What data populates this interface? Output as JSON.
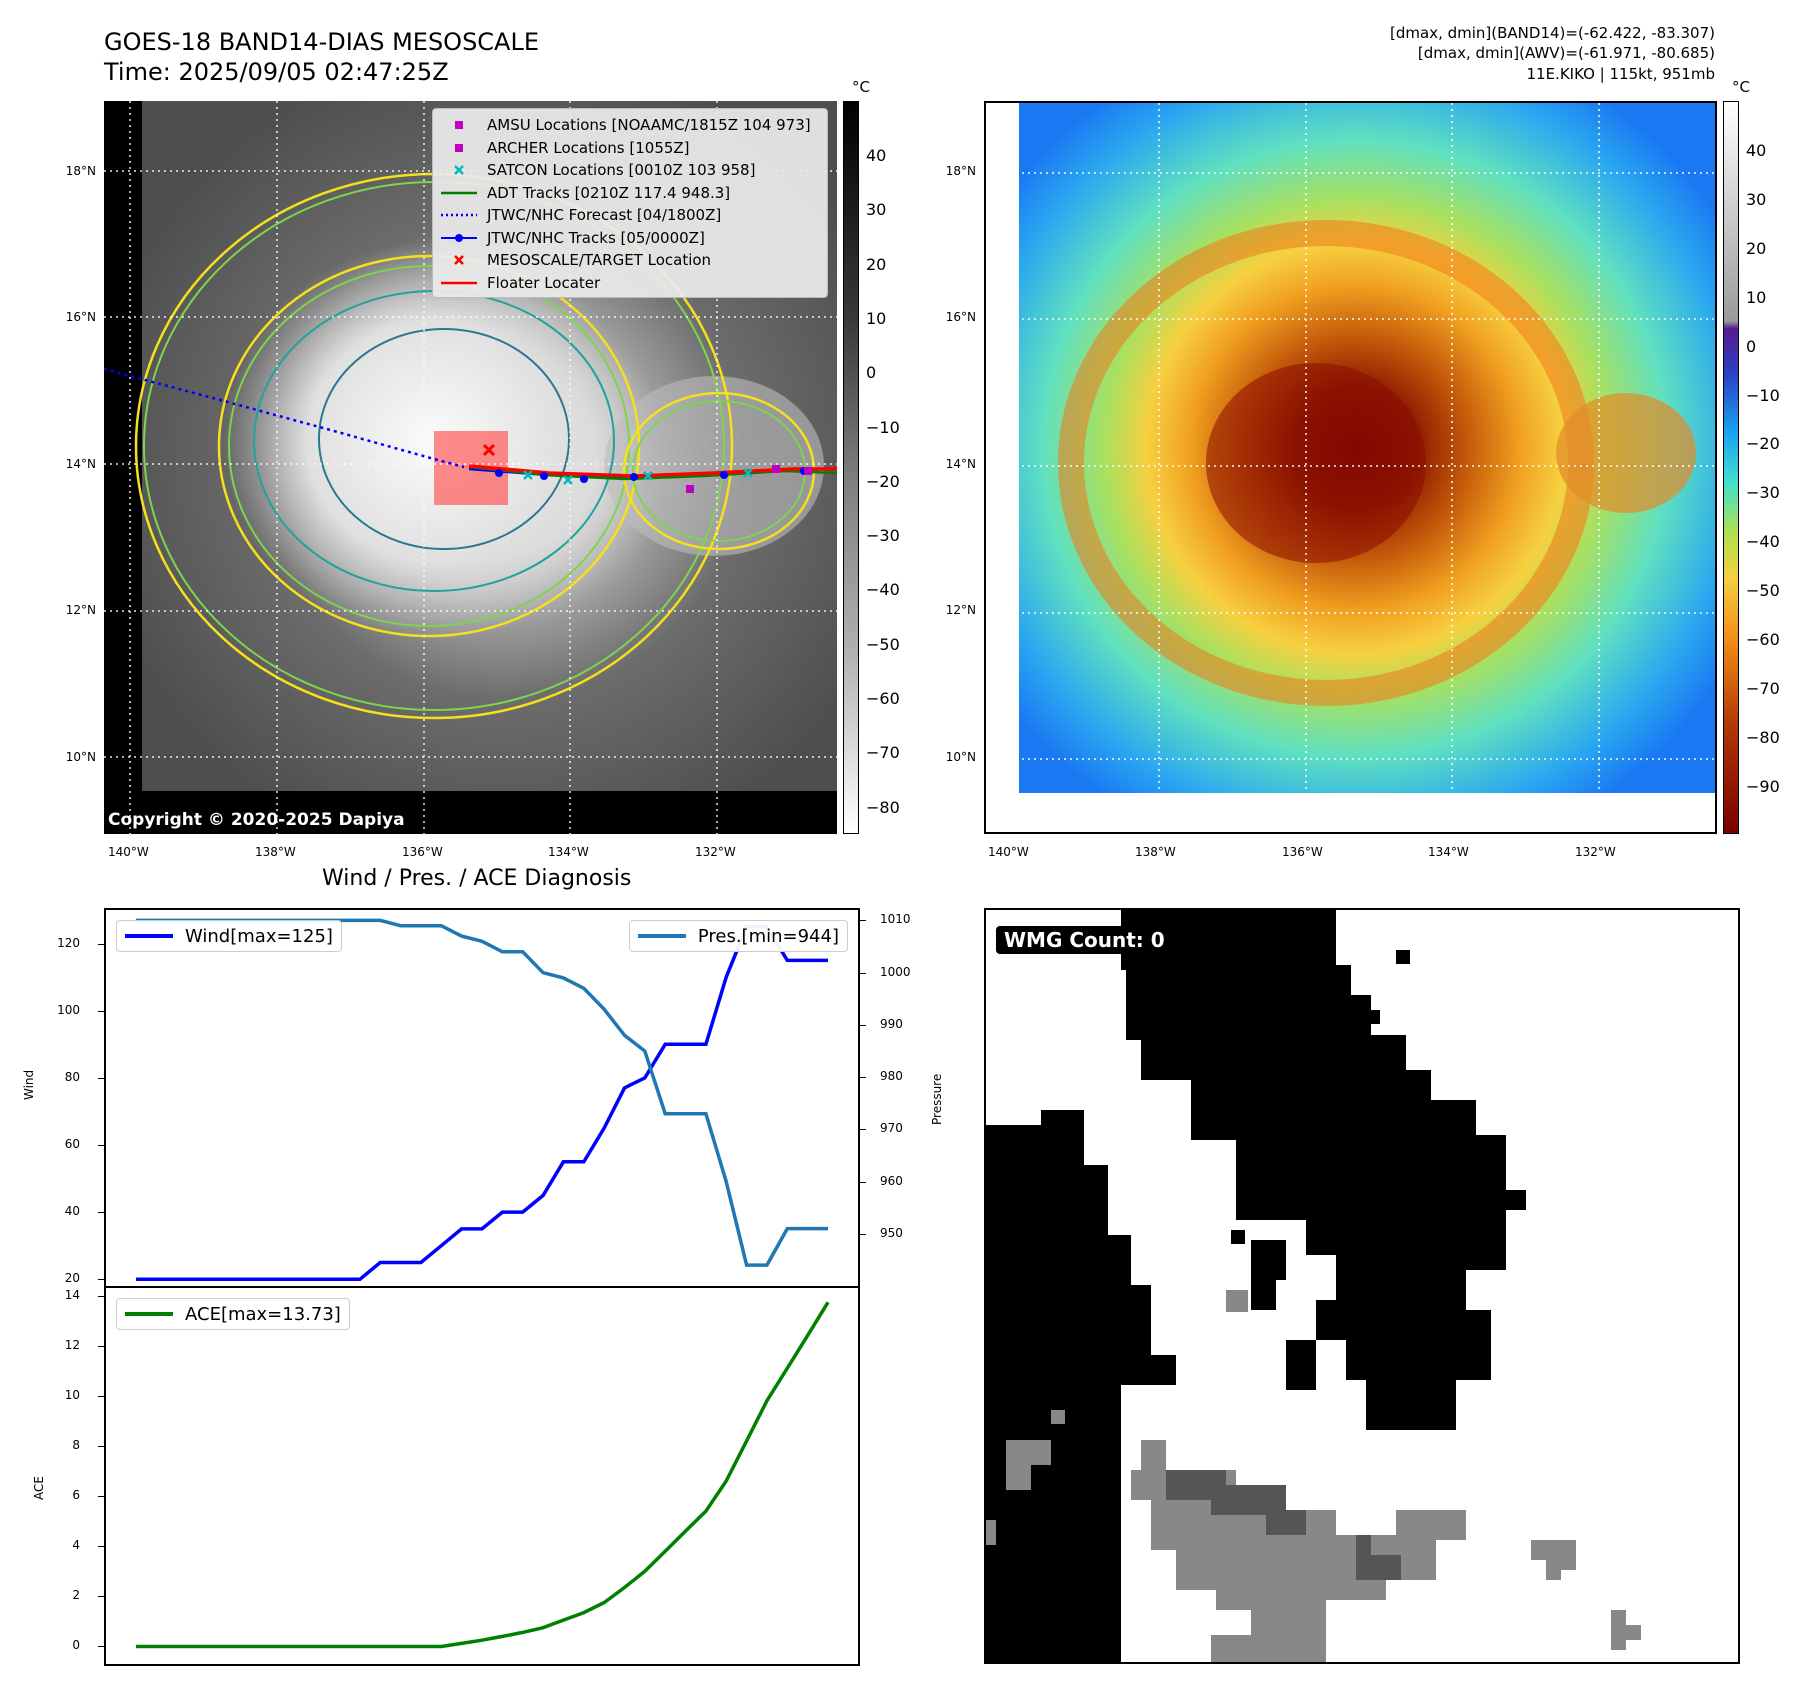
{
  "header": {
    "title_line1": "GOES-18 BAND14-DIAS MESOSCALE",
    "title_line2": "Time: 2025/09/05 02:47:25Z",
    "stats_line1": "[dmax, dmin](BAND14)=(-62.422, -83.307)",
    "stats_line2": "[dmax, dmin](AWV)=(-61.971, -80.685)",
    "stats_line3": "11E.KIKO | 115kt, 951mb"
  },
  "ir_map": {
    "lat_labels": [
      "18°N",
      "16°N",
      "14°N",
      "12°N",
      "10°N"
    ],
    "lon_labels": [
      "140°W",
      "138°W",
      "136°W",
      "134°W",
      "132°W"
    ],
    "copyright": "Copyright © 2020-2025 Dapiya",
    "colorbar_unit": "°C",
    "colorbar_ticks": [
      "40",
      "30",
      "20",
      "10",
      "0",
      "−10",
      "−20",
      "−30",
      "−40",
      "−50",
      "−60",
      "−70",
      "−80"
    ],
    "legend": [
      {
        "label": "AMSU Locations [NOAAMC/1815Z 104 973]",
        "icon": "square-marker",
        "color": "#c000c0"
      },
      {
        "label": "ARCHER Locations [1055Z]",
        "icon": "square-marker",
        "color": "#c000c0"
      },
      {
        "label": "SATCON Locations [0010Z 103 958]",
        "icon": "x-marker",
        "color": "#00bcbc"
      },
      {
        "label": "ADT Tracks [0210Z 117.4 948.3]",
        "icon": "solid-line",
        "color": "#008000"
      },
      {
        "label": "JTWC/NHC Forecast [04/1800Z]",
        "icon": "dotted-line",
        "color": "#0000ff"
      },
      {
        "label": "JTWC/NHC Tracks [05/0000Z]",
        "icon": "dot-line",
        "color": "#0000ff"
      },
      {
        "label": "MESOSCALE/TARGET Location",
        "icon": "x-marker",
        "color": "#ff0000"
      },
      {
        "label": "Floater Locater",
        "icon": "solid-line",
        "color": "#ff0000"
      }
    ]
  },
  "awv_map": {
    "lat_labels": [
      "18°N",
      "16°N",
      "14°N",
      "12°N",
      "10°N"
    ],
    "lon_labels": [
      "140°W",
      "138°W",
      "136°W",
      "134°W",
      "132°W"
    ],
    "colorbar_unit": "°C",
    "colorbar_ticks": [
      "40",
      "30",
      "20",
      "10",
      "0",
      "−10",
      "−20",
      "−30",
      "−40",
      "−50",
      "−60",
      "−70",
      "−80",
      "−90"
    ]
  },
  "colors": {
    "wind": "#0000ff",
    "pressure": "#1f77b4",
    "ace": "#008000",
    "forecast": "#0000ff",
    "floater": "#ff0000"
  },
  "chart_data": [
    {
      "type": "line",
      "title": "Wind / Pres. / ACE Diagnosis",
      "ylabel": "Wind",
      "ylabel_right": "Pressure",
      "ylim": [
        18,
        130
      ],
      "ylim_right": [
        940,
        1012
      ],
      "yticks": [
        20,
        40,
        60,
        80,
        100,
        120
      ],
      "yticks_right": [
        950,
        960,
        970,
        980,
        990,
        1000,
        1010
      ],
      "series": [
        {
          "name": "Wind",
          "legend": "Wind[max=125]",
          "axis": "left",
          "values": [
            20,
            20,
            20,
            20,
            20,
            20,
            20,
            20,
            20,
            20,
            20,
            20,
            25,
            25,
            25,
            30,
            35,
            35,
            40,
            40,
            45,
            55,
            55,
            65,
            77,
            80,
            90,
            90,
            90,
            110,
            125,
            125,
            115,
            115,
            115
          ]
        },
        {
          "name": "Pressure",
          "legend": "Pres.[min=944]",
          "axis": "right",
          "values": [
            1010,
            1010,
            1010,
            1010,
            1010,
            1010,
            1010,
            1010,
            1010,
            1010,
            1010,
            1010,
            1010,
            1009,
            1009,
            1009,
            1007,
            1006,
            1004,
            1004,
            1000,
            999,
            997,
            993,
            988,
            985,
            973,
            973,
            973,
            960,
            944,
            944,
            951,
            951,
            951
          ]
        }
      ]
    },
    {
      "type": "line",
      "ylabel": "ACE",
      "ylim": [
        -0.7,
        14.3
      ],
      "yticks": [
        0,
        2,
        4,
        6,
        8,
        10,
        12,
        14
      ],
      "series": [
        {
          "name": "ACE",
          "legend": "ACE[max=13.73]",
          "values": [
            0,
            0,
            0,
            0,
            0,
            0,
            0,
            0,
            0,
            0,
            0,
            0,
            0,
            0,
            0,
            0,
            0.12,
            0.25,
            0.4,
            0.56,
            0.75,
            1.05,
            1.35,
            1.75,
            2.35,
            3.0,
            3.8,
            4.6,
            5.4,
            6.6,
            8.2,
            9.8,
            11.1,
            12.4,
            13.73
          ]
        }
      ]
    }
  ],
  "wmg": {
    "badge": "WMG Count: 0"
  }
}
